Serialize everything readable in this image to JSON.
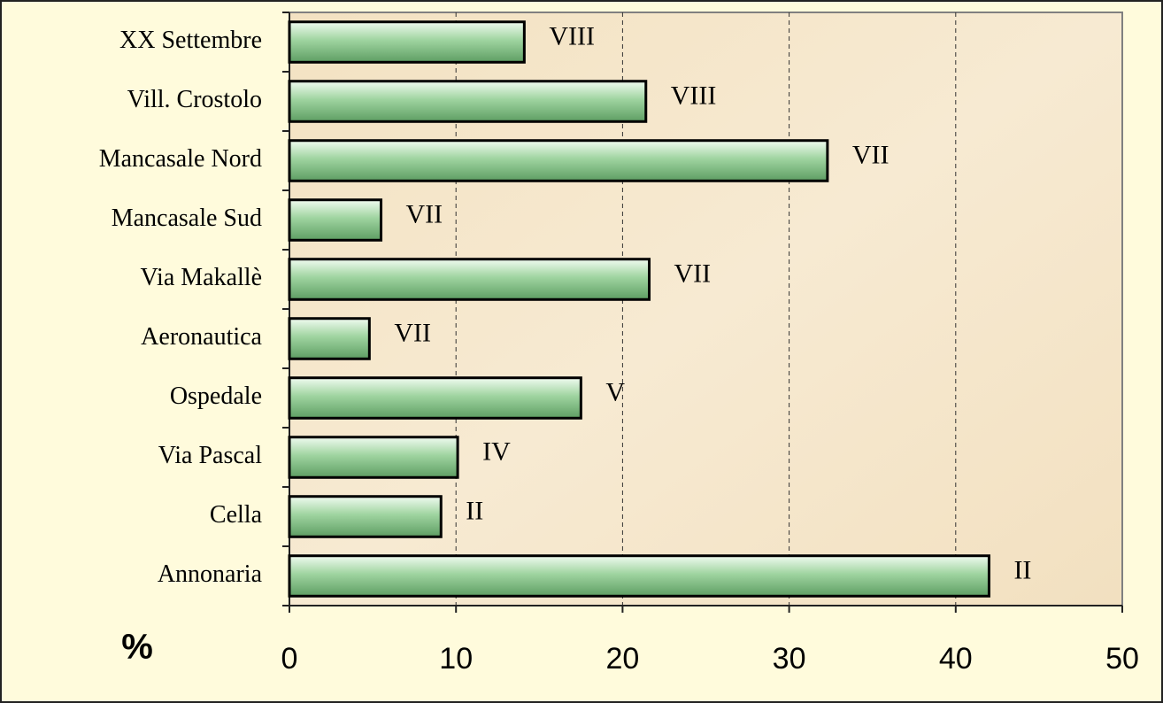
{
  "chart_data": {
    "type": "bar",
    "orientation": "horizontal",
    "x_label": "%",
    "categories": [
      "Annonaria",
      "Cella",
      "Via Pascal",
      "Ospedale",
      "Aeronautica",
      "Via Makallè",
      "Mancasale Sud",
      "Mancasale Nord",
      "Vill. Crostolo",
      "XX Settembre"
    ],
    "values": [
      42.0,
      9.1,
      10.1,
      17.5,
      4.8,
      21.6,
      5.5,
      32.3,
      21.4,
      14.1
    ],
    "annotations": [
      "II",
      "II",
      "IV",
      "V",
      "VII",
      "VII",
      "VII",
      "VII",
      "VIII",
      "VIII"
    ],
    "color": "#9fd4a0",
    "xlim": [
      0,
      50
    ],
    "xticks": [
      0,
      10,
      20,
      30,
      40,
      50
    ],
    "grid": true
  }
}
